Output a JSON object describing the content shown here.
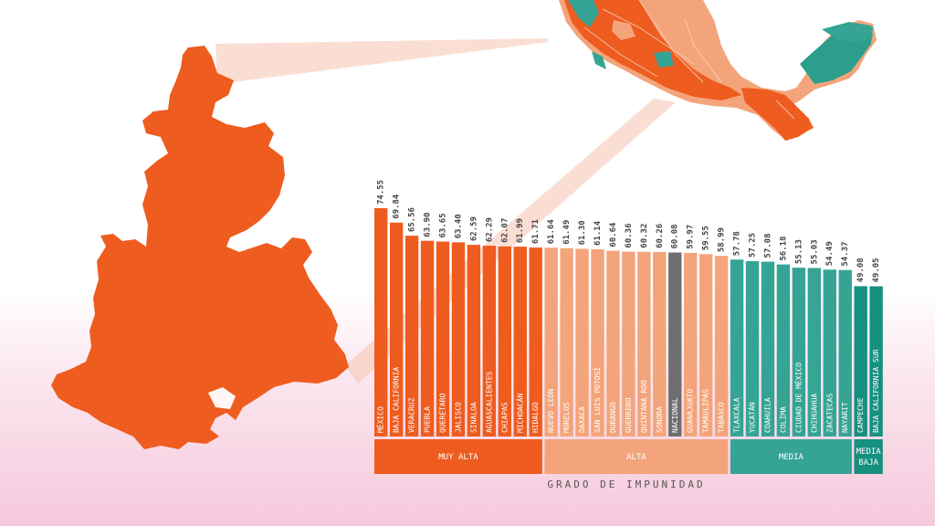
{
  "colors": {
    "muy_alta": "#ee5c1f",
    "alta": "#f4a47a",
    "media": "#35a494",
    "media_baja": "#16907f",
    "nacional": "#6f6f6f",
    "map_orange": "#ee5c1f",
    "map_light": "#f4a47a",
    "map_teal": "#2b9e8c"
  },
  "chart_data": {
    "type": "bar",
    "categories": [
      "MÉXICO",
      "BAJA CALIFORNIA",
      "VERACRUZ",
      "PUEBLA",
      "QUERÉTARO",
      "JALISCO",
      "SINALOA",
      "AGUASCALIENTES",
      "CHIAPAS",
      "MICHOACÁN",
      "HIDALGO",
      "NUEVO LEÓN",
      "MORELOS",
      "OAXACA",
      "SAN LUIS POTOSÍ",
      "DURANGO",
      "GUERRERO",
      "QUINTANA ROO",
      "SONORA",
      "NACIONAL",
      "GUANAJUATO",
      "TAMAULIPAS",
      "TABASCO",
      "TLAXCALA",
      "YUCATÁN",
      "COAHUILA",
      "COLIMA",
      "CIUDAD DE MÉXICO",
      "CHIHUAHUA",
      "ZACATECAS",
      "NAYARIT",
      "CAMPECHE",
      "BAJA CALIFORNIA SUR"
    ],
    "values": [
      74.55,
      69.84,
      65.56,
      63.9,
      63.65,
      63.4,
      62.59,
      62.29,
      62.07,
      61.99,
      61.71,
      61.64,
      61.49,
      61.3,
      61.14,
      60.64,
      60.36,
      60.32,
      60.26,
      60.08,
      59.97,
      59.55,
      58.99,
      57.78,
      57.25,
      57.08,
      56.18,
      55.13,
      55.03,
      54.49,
      54.37,
      49.08,
      49.05
    ],
    "value_labels": [
      "74.55",
      "69.84",
      "65.56",
      "63.90",
      "63.65",
      "63.40",
      "62.59",
      "62.29",
      "62.07",
      "61.99",
      "61.71",
      "61.64",
      "61.49",
      "61.30",
      "61.14",
      "60.64",
      "60.36",
      "60.32",
      "60.26",
      "60.08",
      "59.97",
      "59.55",
      "58.99",
      "57.78",
      "57.25",
      "57.08",
      "56.18",
      "55.13",
      "55.03",
      "54.49",
      "54.37",
      "49.08",
      "49.05"
    ],
    "group_of_bar": [
      "muy_alta",
      "muy_alta",
      "muy_alta",
      "muy_alta",
      "muy_alta",
      "muy_alta",
      "muy_alta",
      "muy_alta",
      "muy_alta",
      "muy_alta",
      "muy_alta",
      "alta",
      "alta",
      "alta",
      "alta",
      "alta",
      "alta",
      "alta",
      "alta",
      "nacional",
      "alta",
      "alta",
      "alta",
      "media",
      "media",
      "media",
      "media",
      "media",
      "media",
      "media",
      "media",
      "media_baja",
      "media_baja"
    ],
    "groups": [
      {
        "key": "muy_alta",
        "label": "MUY ALTA",
        "count": 11
      },
      {
        "key": "alta",
        "label": "ALTA",
        "count": 12
      },
      {
        "key": "media",
        "label": "MEDIA",
        "count": 8
      },
      {
        "key": "media_baja",
        "label": "MEDIA\nBAJA",
        "count": 2
      }
    ],
    "xlabel": "GRADO DE IMPUNIDAD"
  }
}
